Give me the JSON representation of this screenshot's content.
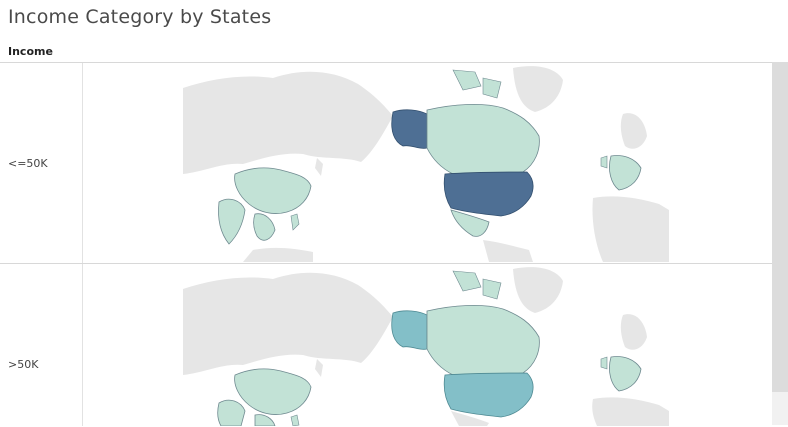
{
  "title": "Income Category by States",
  "column_header": "Income",
  "rows": [
    {
      "label": "<=50K"
    },
    {
      "label": ">50K"
    }
  ],
  "colors": {
    "land_base": "#e6e6e6",
    "land_border": "#ffffff",
    "region_light": "#c2e2d6",
    "highlight_dark": "#4e6f94",
    "highlight_mid": "#83bfc8",
    "country_edge": "#6f8a90"
  },
  "map_layers": [
    {
      "row": "<=50K",
      "highlighted": [
        {
          "region": "United States",
          "shade": "dark"
        },
        {
          "region": "Alaska",
          "shade": "dark"
        }
      ],
      "light": [
        "Canada",
        "Greenland (partial)",
        "Mexico",
        "China",
        "India",
        "Southeast Asia",
        "Philippines",
        "Europe"
      ]
    },
    {
      "row": ">50K",
      "highlighted": [
        {
          "region": "United States",
          "shade": "mid"
        },
        {
          "region": "Alaska",
          "shade": "mid"
        }
      ],
      "light": [
        "Canada",
        "Greenland (partial)",
        "China",
        "India",
        "Southeast Asia",
        "Philippines",
        "Europe"
      ]
    }
  ]
}
